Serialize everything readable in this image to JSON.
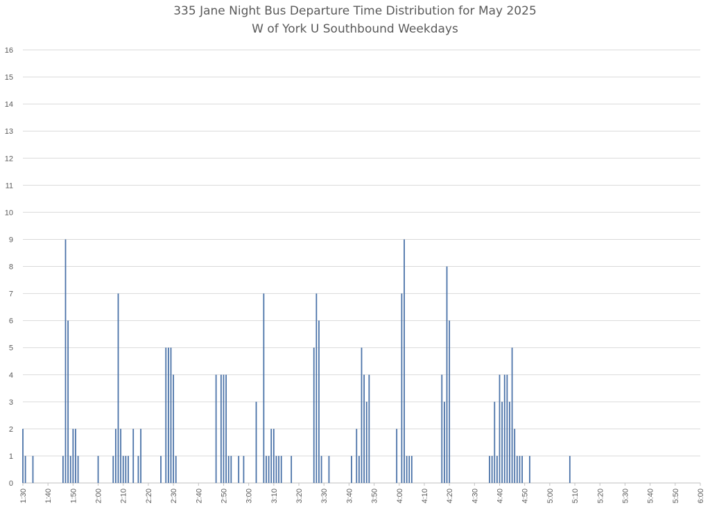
{
  "chart_data": {
    "type": "bar",
    "title": "335 Jane Night Bus Departure Time Distribution for May 2025",
    "subtitle": "W of York U Southbound Weekdays",
    "xlabel": "",
    "ylabel": "",
    "ylim": [
      0,
      16
    ],
    "y_ticks": [
      "0",
      "1",
      "2",
      "3",
      "4",
      "5",
      "6",
      "7",
      "8",
      "9",
      "10",
      "11",
      "12",
      "13",
      "14",
      "15",
      "16"
    ],
    "x_range": [
      "1:30",
      "6:00"
    ],
    "x_ticks": [
      "1:30",
      "1:40",
      "1:50",
      "2:00",
      "2:10",
      "2:20",
      "2:30",
      "2:40",
      "2:50",
      "3:00",
      "3:10",
      "3:20",
      "3:30",
      "3:40",
      "3:50",
      "4:00",
      "4:10",
      "4:20",
      "4:30",
      "4:40",
      "4:50",
      "5:00",
      "5:10",
      "5:20",
      "5:30",
      "5:40",
      "5:50",
      "6:00"
    ],
    "grid": true,
    "legend": "none",
    "bar_color": "#4a72a8",
    "series": [
      {
        "x": [
          "1:30",
          "1:31",
          "1:34",
          "1:46",
          "1:47",
          "1:48",
          "1:49",
          "1:50",
          "1:51",
          "1:52",
          "2:00",
          "2:06",
          "2:07",
          "2:08",
          "2:09",
          "2:10",
          "2:11",
          "2:12",
          "2:14",
          "2:16",
          "2:17",
          "2:25",
          "2:27",
          "2:28",
          "2:29",
          "2:30",
          "2:31",
          "2:47",
          "2:49",
          "2:50",
          "2:51",
          "2:52",
          "2:53",
          "2:56",
          "2:58",
          "3:03",
          "3:06",
          "3:07",
          "3:08",
          "3:09",
          "3:10",
          "3:11",
          "3:12",
          "3:13",
          "3:17",
          "3:26",
          "3:27",
          "3:28",
          "3:29",
          "3:32",
          "3:41",
          "3:43",
          "3:44",
          "3:45",
          "3:46",
          "3:47",
          "3:48",
          "3:59",
          "4:01",
          "4:02",
          "4:03",
          "4:04",
          "4:05",
          "4:17",
          "4:18",
          "4:19",
          "4:20",
          "4:36",
          "4:37",
          "4:38",
          "4:39",
          "4:40",
          "4:41",
          "4:42",
          "4:43",
          "4:44",
          "4:45",
          "4:46",
          "4:47",
          "4:48",
          "4:49",
          "4:52",
          "5:08"
        ],
        "values": [
          2,
          1,
          1,
          1,
          9,
          6,
          1,
          2,
          2,
          1,
          1,
          1,
          2,
          7,
          2,
          1,
          1,
          1,
          2,
          1,
          2,
          1,
          5,
          5,
          5,
          4,
          1,
          4,
          4,
          4,
          4,
          1,
          1,
          1,
          1,
          3,
          7,
          1,
          1,
          2,
          2,
          1,
          1,
          1,
          1,
          5,
          7,
          6,
          1,
          1,
          1,
          2,
          1,
          5,
          4,
          3,
          4,
          2,
          7,
          9,
          1,
          1,
          1,
          4,
          3,
          8,
          6,
          1,
          1,
          3,
          1,
          4,
          3,
          4,
          4,
          3,
          5,
          2,
          1,
          1,
          1,
          1,
          1
        ]
      }
    ]
  }
}
